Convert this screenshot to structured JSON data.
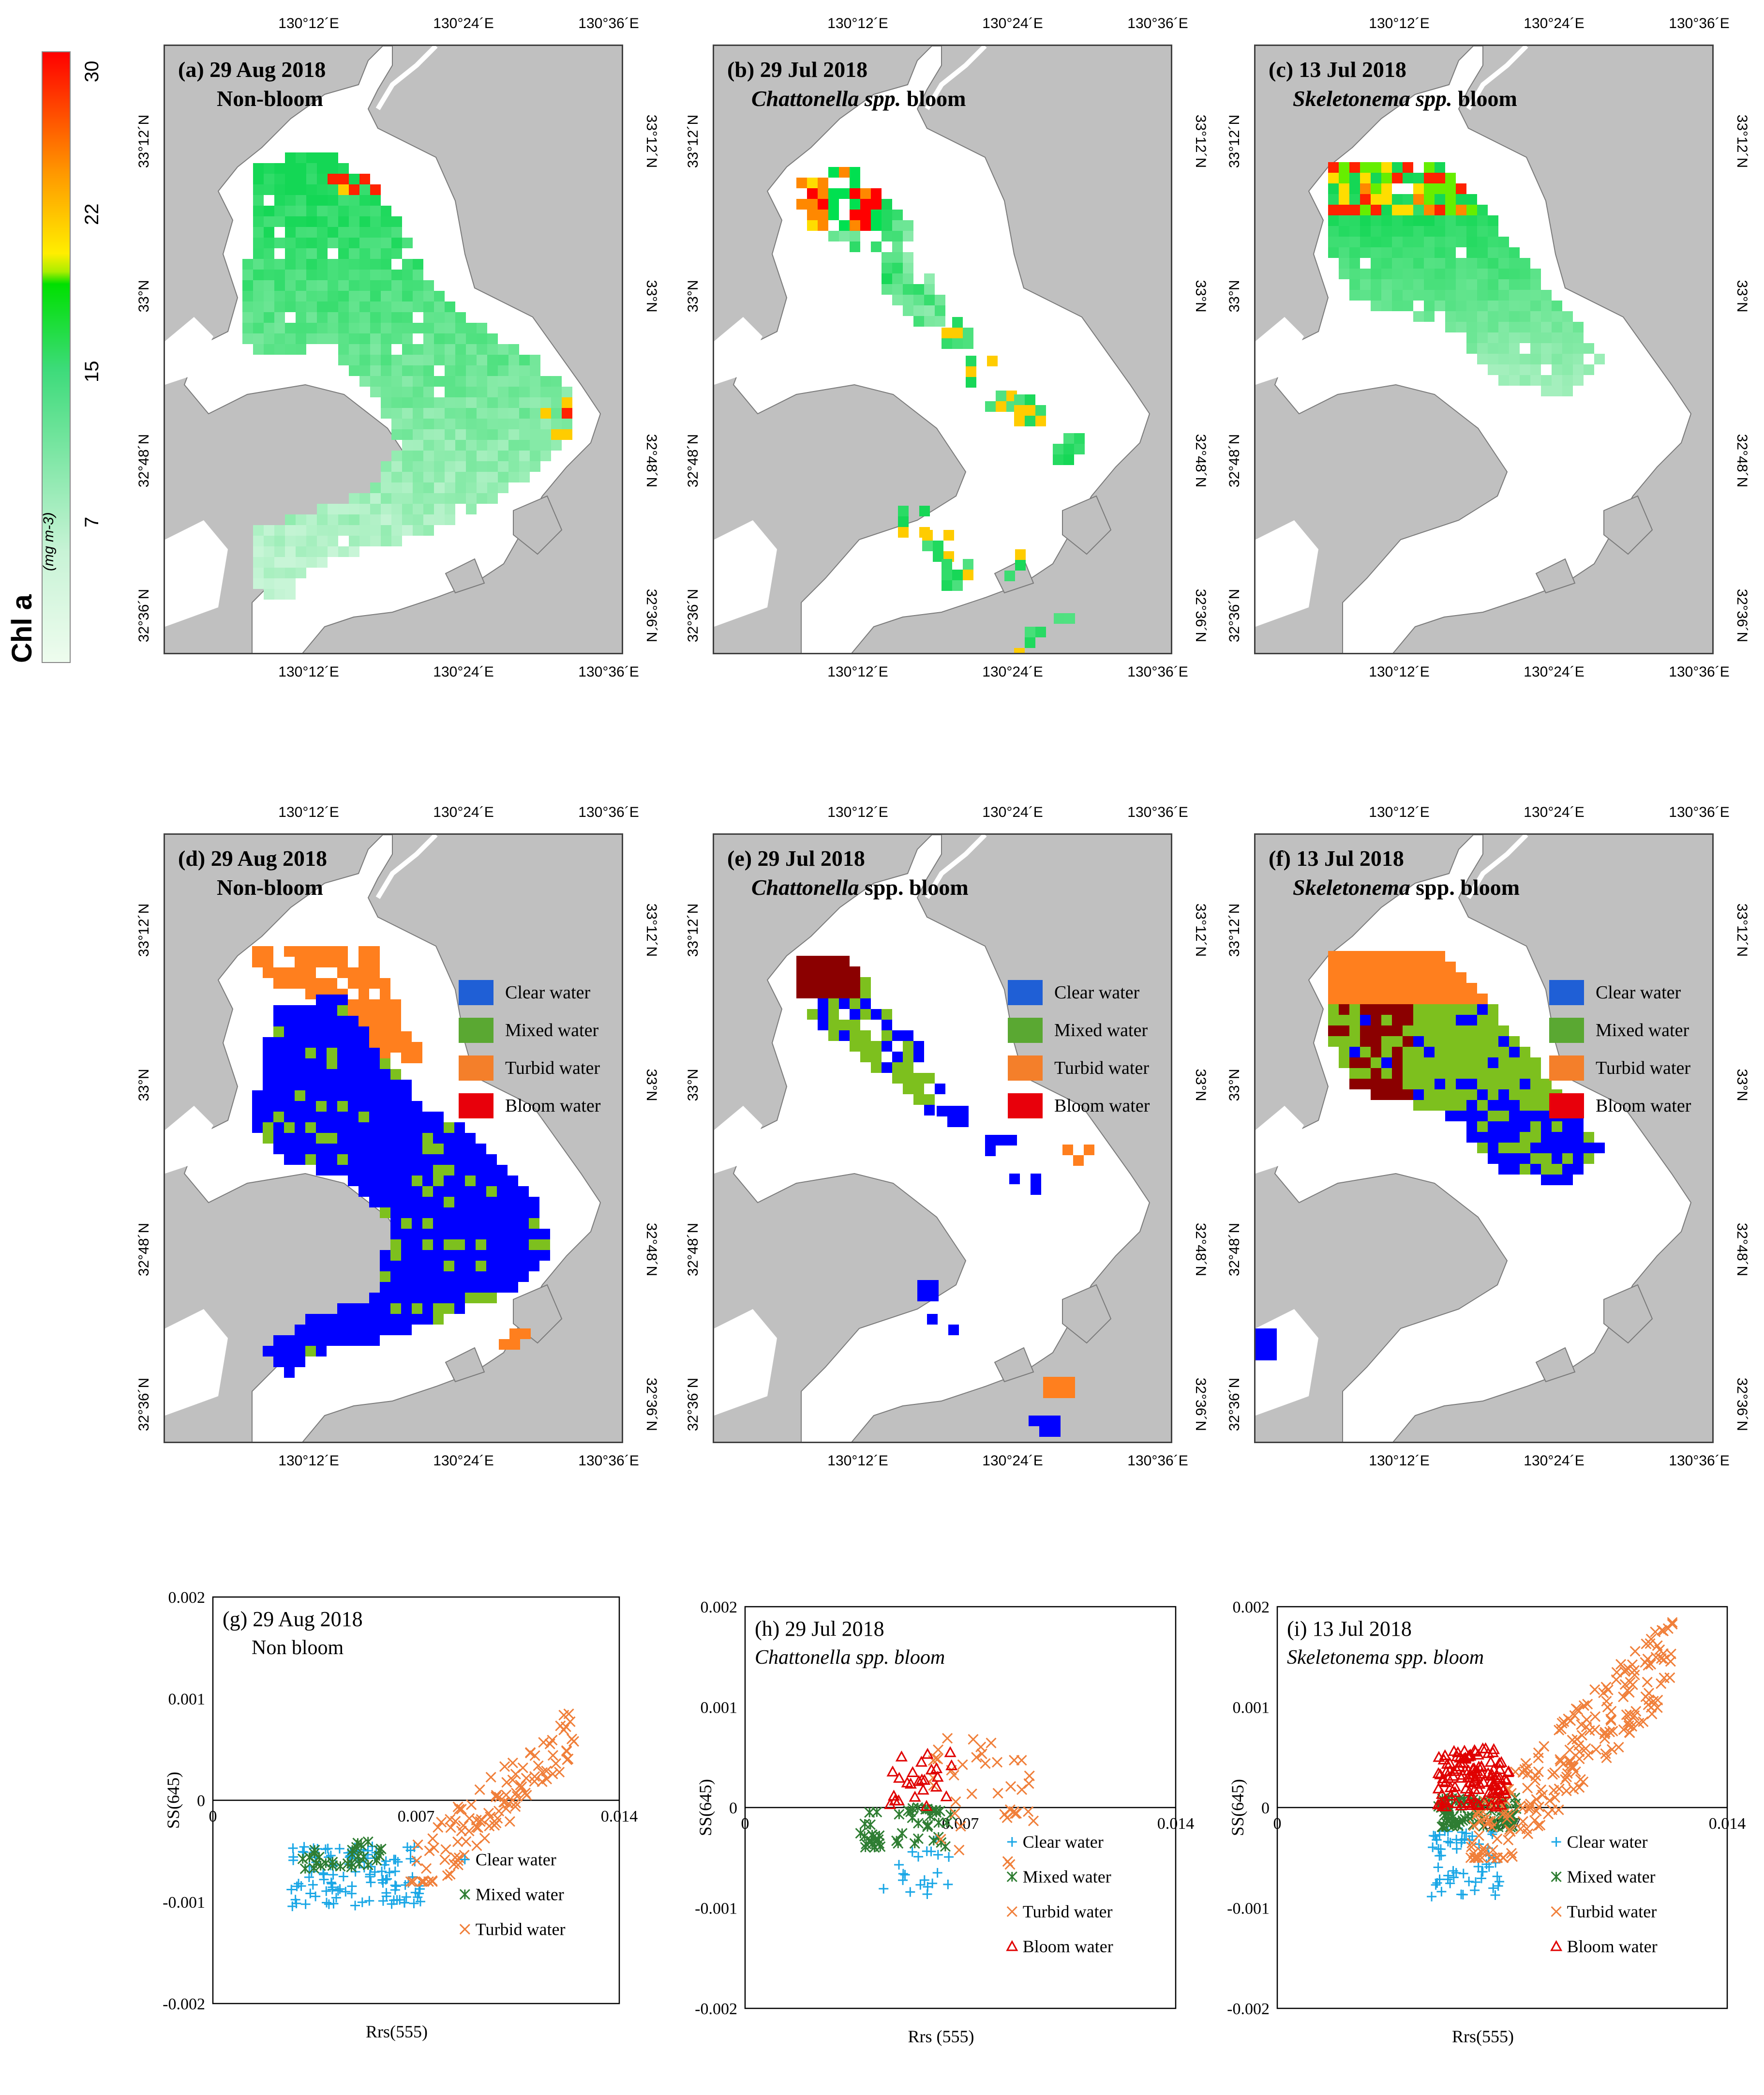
{
  "colorbar": {
    "title": "Chl a",
    "unit": "(mg m-3)",
    "ticks": [
      "30",
      "22",
      "15",
      "7"
    ],
    "tick_values": [
      30,
      22,
      15,
      7
    ],
    "range": [
      0,
      30
    ]
  },
  "lon_ticks": [
    "130°12´E",
    "130°24´E",
    "130°36´E"
  ],
  "lat_ticks": [
    "33°12´N",
    "33°N",
    "32°48´N",
    "32°36´N"
  ],
  "panels": {
    "a": {
      "label": "(a) 29 Aug 2018",
      "sub": "Non-bloom",
      "italic_sub": false
    },
    "b": {
      "label": "(b) 29 Jul 2018",
      "sub_italic": "Chattonella spp.",
      "sub_rest": " bloom"
    },
    "c": {
      "label": "(c) 13 Jul 2018",
      "sub_italic": "Skeletonema spp.",
      "sub_rest": " bloom"
    },
    "d": {
      "label": "(d) 29 Aug 2018",
      "sub": "Non-bloom"
    },
    "e": {
      "label": "(e) 29 Jul 2018",
      "sub_italic": "Chattonella",
      "sub_rest": " spp. bloom"
    },
    "f": {
      "label": "(f) 13 Jul 2018",
      "sub_italic": "Skeletonema",
      "sub_rest": " spp. bloom"
    }
  },
  "class_legend": {
    "items": [
      "Clear water",
      "Mixed water",
      "Turbid water",
      "Bloom water"
    ],
    "colors": [
      "#1f5fd6",
      "#5aa832",
      "#f47f2a",
      "#e8000b"
    ]
  },
  "colors": {
    "land": "#c0c0c0",
    "water": "#ffffff",
    "clear_map": "#0000ff",
    "mixed_map": "#7dc01e",
    "turbid_map": "#ff7f1e",
    "bloom_map": "#8b0000",
    "clear_pt": "#1aa7e6",
    "mixed_pt": "#2e7d32",
    "turbid_pt": "#f07f3a",
    "bloom_pt": "#e00000"
  },
  "chart_data": [
    {
      "type": "scatter",
      "title": "(g) 29 Aug 2018",
      "subtitle": "Non bloom",
      "xlabel": "Rrs(555)",
      "ylabel": "SS(645)",
      "xlim": [
        0,
        0.014
      ],
      "ylim": [
        -0.002,
        0.002
      ],
      "xticks": [
        "0",
        "0.007",
        "0.014"
      ],
      "yticks": [
        "0.002",
        "0.001",
        "0",
        "-0.001",
        "-0.002"
      ],
      "legend": [
        "Clear water",
        "Mixed water",
        "Turbid water"
      ],
      "series": [
        {
          "name": "Clear water",
          "marker": "+",
          "x_range": [
            0.0027,
            0.0072
          ],
          "y_range": [
            -0.00105,
            -0.00045
          ],
          "count": 120
        },
        {
          "name": "Mixed water",
          "marker": "*",
          "x_range": [
            0.003,
            0.006
          ],
          "y_range": [
            -0.0007,
            -0.0004
          ],
          "count": 30
        },
        {
          "name": "Turbid water",
          "marker": "x",
          "x_range": [
            0.0068,
            0.0125
          ],
          "y_range": [
            -0.0008,
            0.00095
          ],
          "count": 110
        }
      ]
    },
    {
      "type": "scatter",
      "title": "(h) 29 Jul 2018",
      "subtitle": "Chattonella spp. bloom",
      "xlabel": "Rrs (555)",
      "ylabel": "SS(645)",
      "xlim": [
        0,
        0.014
      ],
      "ylim": [
        -0.002,
        0.002
      ],
      "xticks": [
        "0",
        "0.007",
        "0.014"
      ],
      "yticks": [
        "0.002",
        "0.001",
        "0",
        "-0.001",
        "-0.002"
      ],
      "legend": [
        "Clear water",
        "Mixed water",
        "Turbid water",
        "Bloom water"
      ],
      "series": [
        {
          "name": "Clear water",
          "marker": "+",
          "x_range": [
            0.0045,
            0.0068
          ],
          "y_range": [
            -0.0009,
            -0.0003
          ],
          "count": 20
        },
        {
          "name": "Mixed water",
          "marker": "*",
          "x_range": [
            0.0036,
            0.0068
          ],
          "y_range": [
            -0.0004,
            0.0
          ],
          "count": 45
        },
        {
          "name": "Turbid water",
          "marker": "x",
          "x_range": [
            0.006,
            0.0095
          ],
          "y_range": [
            -0.0006,
            0.0007
          ],
          "count": 40
        },
        {
          "name": "Bloom water",
          "marker": "^",
          "x_range": [
            0.0047,
            0.0068
          ],
          "y_range": [
            0.0,
            0.00055
          ],
          "count": 25
        }
      ]
    },
    {
      "type": "scatter",
      "title": "(i) 13 Jul 2018",
      "subtitle": "Skeletonema spp. bloom",
      "xlabel": "Rrs(555)",
      "ylabel": "SS(645)",
      "xlim": [
        0,
        0.014
      ],
      "ylim": [
        -0.002,
        0.002
      ],
      "xticks": [
        "0",
        "0.007",
        "0.014"
      ],
      "yticks": [
        "0.002",
        "0.001",
        "0",
        "-0.001",
        "-0.002"
      ],
      "legend": [
        "Clear water",
        "Mixed water",
        "Turbid water",
        "Bloom water"
      ],
      "series": [
        {
          "name": "Clear water",
          "marker": "+",
          "x_range": [
            0.0048,
            0.007
          ],
          "y_range": [
            -0.0009,
            -0.0002
          ],
          "count": 60
        },
        {
          "name": "Mixed water",
          "marker": "*",
          "x_range": [
            0.005,
            0.0075
          ],
          "y_range": [
            -0.0002,
            0.0001
          ],
          "count": 80
        },
        {
          "name": "Turbid water",
          "marker": "x",
          "x_range": [
            0.006,
            0.0123
          ],
          "y_range": [
            -0.0005,
            0.0019
          ],
          "count": 220
        },
        {
          "name": "Bloom water",
          "marker": "^",
          "x_range": [
            0.005,
            0.0072
          ],
          "y_range": [
            0.0,
            0.0006
          ],
          "count": 120
        }
      ]
    }
  ]
}
